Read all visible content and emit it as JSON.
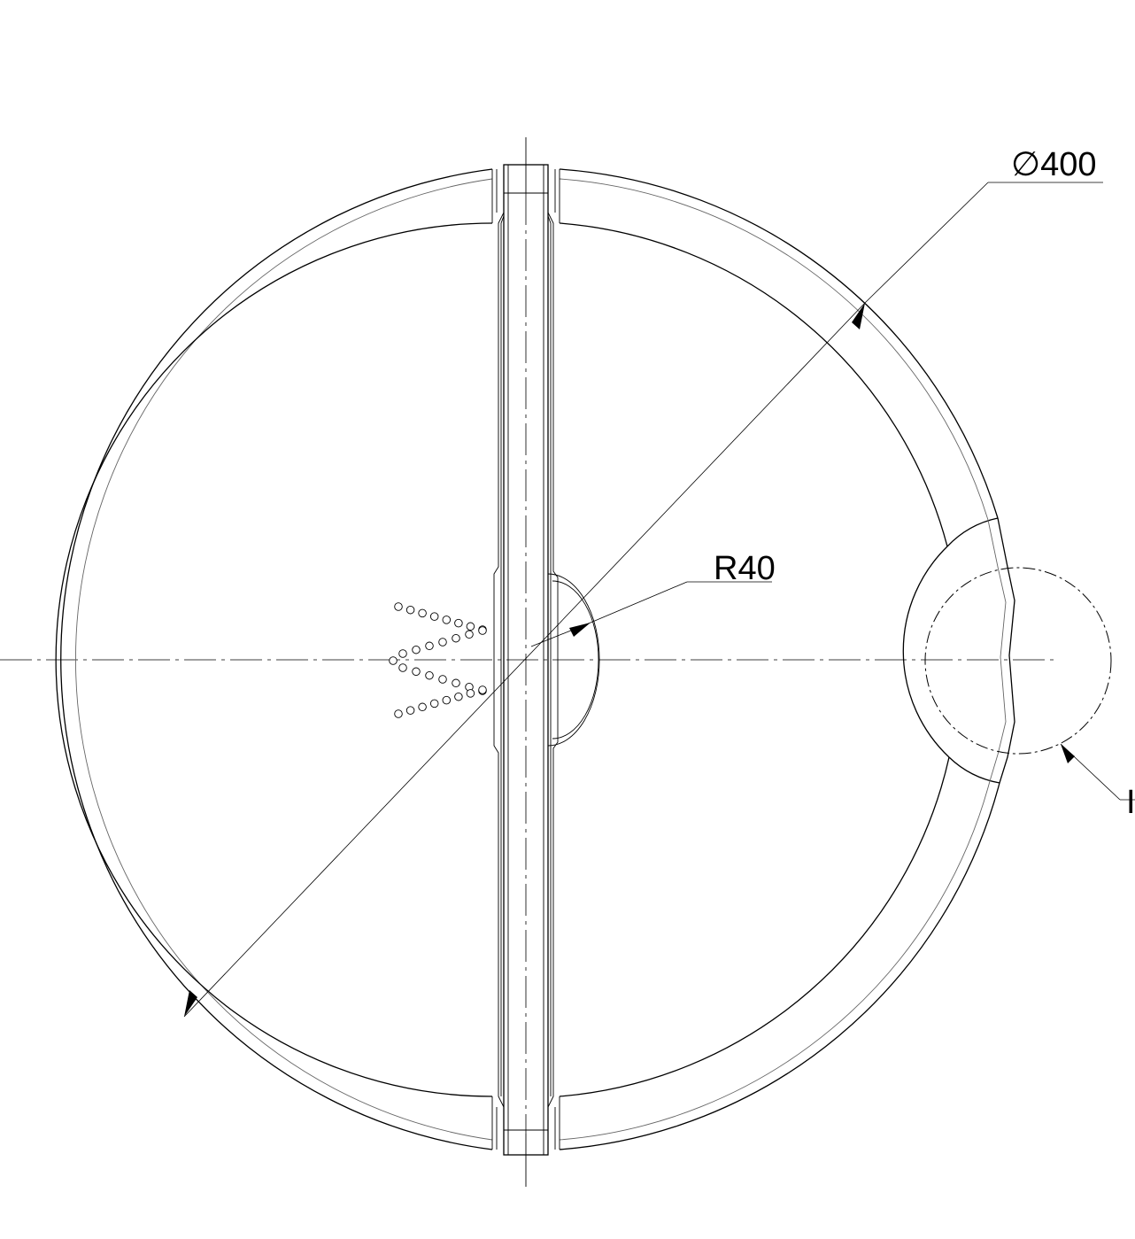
{
  "dimensions": {
    "diameter_label": "∅400",
    "radius_label": "R40",
    "detail_label": "I"
  },
  "perforation": {
    "rows": [
      8,
      7,
      7,
      8
    ]
  }
}
